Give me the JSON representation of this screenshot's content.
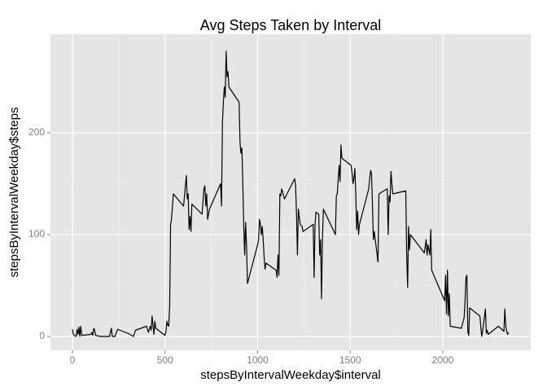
{
  "chart_data": {
    "type": "line",
    "title": "Avg Steps Taken by Interval",
    "x_label": "stepsByIntervalWeekday$interval",
    "y_label": "stepsByIntervalWeekday$steps",
    "x": [
      0,
      5,
      10,
      20,
      25,
      30,
      35,
      40,
      45,
      50,
      100,
      105,
      110,
      115,
      120,
      125,
      150,
      200,
      210,
      215,
      230,
      235,
      245,
      300,
      330,
      340,
      400,
      410,
      420,
      425,
      430,
      440,
      445,
      450,
      500,
      505,
      510,
      515,
      520,
      525,
      530,
      535,
      545,
      600,
      610,
      615,
      620,
      625,
      630,
      635,
      640,
      645,
      700,
      710,
      715,
      720,
      725,
      730,
      740,
      800,
      805,
      810,
      815,
      820,
      825,
      830,
      835,
      840,
      845,
      900,
      905,
      910,
      915,
      920,
      925,
      930,
      935,
      940,
      945,
      1000,
      1005,
      1010,
      1015,
      1020,
      1025,
      1030,
      1035,
      1040,
      1045,
      1100,
      1105,
      1110,
      1115,
      1120,
      1125,
      1130,
      1145,
      1200,
      1205,
      1210,
      1215,
      1220,
      1230,
      1240,
      1245,
      1300,
      1305,
      1310,
      1315,
      1330,
      1335,
      1340,
      1345,
      1350,
      1355,
      1420,
      1425,
      1430,
      1440,
      1445,
      1450,
      1455,
      1505,
      1510,
      1515,
      1520,
      1525,
      1530,
      1535,
      1540,
      1545,
      1550,
      1600,
      1605,
      1610,
      1615,
      1620,
      1625,
      1630,
      1650,
      1655,
      1700,
      1705,
      1710,
      1715,
      1720,
      1725,
      1730,
      1800,
      1805,
      1810,
      1815,
      1820,
      1825,
      1900,
      1905,
      1910,
      1915,
      1920,
      1925,
      1930,
      1935,
      1940,
      2010,
      2015,
      2020,
      2025,
      2030,
      2035,
      2040,
      2100,
      2110,
      2115,
      2120,
      2125,
      2130,
      2135,
      2140,
      2145,
      2200,
      2210,
      2215,
      2230,
      2235,
      2240,
      2245,
      2300,
      2330,
      2335,
      2340,
      2345,
      2350,
      2355
    ],
    "series": [
      {
        "color": "#000000",
        "values": [
          7,
          2,
          1,
          0,
          7,
          2,
          9,
          0,
          10,
          1,
          2,
          4,
          1,
          8,
          6,
          1,
          0,
          0,
          8,
          0,
          0,
          3,
          7,
          3,
          0,
          6,
          10,
          4,
          10,
          6,
          20,
          2,
          15,
          8,
          1,
          5,
          15,
          11,
          10,
          30,
          110,
          115,
          140,
          128,
          148,
          158,
          135,
          140,
          105,
          118,
          103,
          130,
          120,
          145,
          148,
          128,
          140,
          115,
          125,
          150,
          128,
          210,
          230,
          245,
          235,
          280,
          255,
          260,
          245,
          230,
          190,
          180,
          185,
          150,
          108,
          80,
          112,
          90,
          52,
          90,
          95,
          115,
          110,
          100,
          108,
          95,
          78,
          66,
          72,
          65,
          58,
          80,
          60,
          140,
          138,
          145,
          135,
          155,
          148,
          120,
          80,
          125,
          110,
          108,
          103,
          110,
          58,
          110,
          122,
          120,
          80,
          95,
          37,
          95,
          125,
          100,
          138,
          140,
          168,
          152,
          188,
          175,
          168,
          160,
          150,
          155,
          165,
          140,
          105,
          123,
          100,
          110,
          145,
          155,
          163,
          160,
          130,
          95,
          103,
          73,
          140,
          145,
          100,
          138,
          132,
          162,
          150,
          140,
          143,
          80,
          48,
          108,
          85,
          100,
          82,
          88,
          95,
          80,
          90,
          85,
          80,
          105,
          65,
          35,
          60,
          22,
          65,
          20,
          42,
          10,
          8,
          15,
          18,
          35,
          58,
          60,
          5,
          1,
          28,
          20,
          0,
          5,
          27,
          3,
          6,
          2,
          10,
          5,
          27,
          10,
          5,
          2,
          4
        ]
      }
    ],
    "xlim": [
      -118.7,
      2474.7
    ],
    "ylim": [
      -13.6,
      296.8
    ],
    "xticks": [
      0,
      500,
      1000,
      1500,
      2000
    ],
    "yticks": [
      0,
      100,
      200
    ],
    "grid": true
  }
}
